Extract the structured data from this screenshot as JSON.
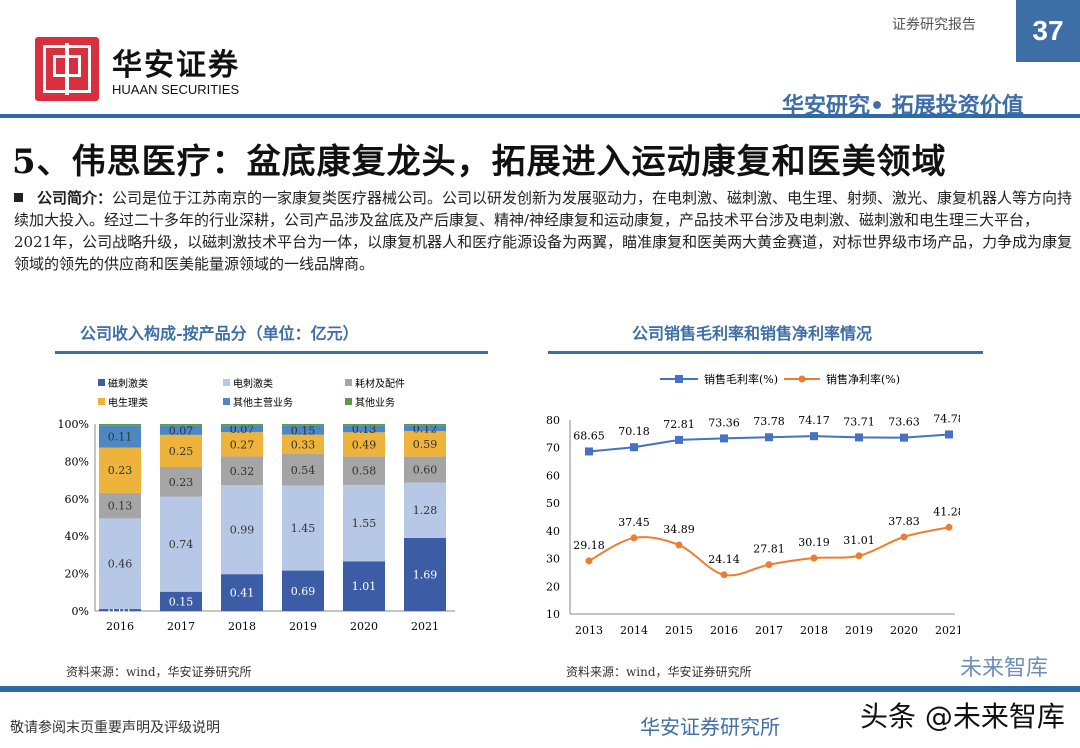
{
  "header": {
    "brand_cn": "华安证券",
    "brand_en": "HUAAN SECURITIES",
    "report_type": "证券研究报告",
    "page_number": "37",
    "slogan": "华安研究• 拓展投资价值"
  },
  "title": "5、伟思医疗：盆底康复龙头，拓展进入运动康复和医美领域",
  "intro": {
    "label": "公司简介：",
    "text": "公司是位于江苏南京的一家康复类医疗器械公司。公司以研发创新为发展驱动力，在电刺激、磁刺激、电生理、射频、激光、康复机器人等方向持续加大投入。经过二十多年的行业深耕，公司产品涉及盆底及产后康复、精神/神经康复和运动康复，产品技术平台涉及电刺激、磁刺激和电生理三大平台，2021年，公司战略升级，以磁刺激技术平台为一体，以康复机器人和医疗能源设备为两翼，瞄准康复和医美两大黄金赛道，对标世界级市场产品，力争成为康复领域的领先的供应商和医美能量源领域的一线品牌商。"
  },
  "chart_data": [
    {
      "type": "bar",
      "stacked": true,
      "normalized": true,
      "title": "公司收入构成-按产品分（单位：亿元）",
      "categories": [
        "2016",
        "2017",
        "2018",
        "2019",
        "2020",
        "2021"
      ],
      "yticks": [
        "0%",
        "20%",
        "40%",
        "60%",
        "80%",
        "100%"
      ],
      "legend_position": "top",
      "series": [
        {
          "name": "磁刺激类",
          "color": "#3c5da6",
          "values": [
            0.01,
            0.15,
            0.41,
            0.69,
            1.01,
            1.69
          ]
        },
        {
          "name": "电刺激类",
          "color": "#b7c8e6",
          "values": [
            0.46,
            0.74,
            0.99,
            1.45,
            1.55,
            1.28
          ]
        },
        {
          "name": "耗材及配件",
          "color": "#a5a5a5",
          "values": [
            0.13,
            0.23,
            0.32,
            0.54,
            0.58,
            0.6
          ]
        },
        {
          "name": "电生理类",
          "color": "#eeb33b",
          "values": [
            0.23,
            0.25,
            0.27,
            0.33,
            0.49,
            0.59
          ]
        },
        {
          "name": "其他主营业务",
          "color": "#4e88c3",
          "values": [
            0.11,
            0.07,
            0.07,
            0.15,
            0.13,
            0.12
          ]
        },
        {
          "name": "其他业务",
          "color": "#5a9a48",
          "values": [
            null,
            null,
            null,
            null,
            null,
            null
          ]
        }
      ],
      "labels": [
        [
          "0.01",
          "0.15",
          "0.41",
          "0.69",
          "1.01",
          "1.69"
        ],
        [
          "0.46",
          "0.74",
          "0.99",
          "1.45",
          "1.55",
          "1.28"
        ],
        [
          "0.13",
          "0.23",
          "0.32",
          "0.54",
          "0.58",
          "0.60"
        ],
        [
          "0.23",
          "0.25",
          "0.27",
          "0.33",
          "0.49",
          "0.59"
        ],
        [
          "0.11",
          "0.07",
          "0.07",
          "0.15",
          "0.13",
          "0.12"
        ]
      ],
      "source": "资料来源：wind，华安证券研究所"
    },
    {
      "type": "line",
      "title": "公司销售毛利率和销售净利率情况",
      "x": [
        "2013",
        "2014",
        "2015",
        "2016",
        "2017",
        "2018",
        "2019",
        "2020",
        "2021"
      ],
      "ylim": [
        10,
        80
      ],
      "yticks": [
        "10",
        "20",
        "30",
        "40",
        "50",
        "60",
        "70",
        "80"
      ],
      "legend_position": "top",
      "series": [
        {
          "name": "销售毛利率(%)",
          "color": "#4472c4",
          "marker": "square",
          "values": [
            68.65,
            70.18,
            72.81,
            73.36,
            73.78,
            74.17,
            73.71,
            73.63,
            74.78
          ],
          "labels": [
            "68.65",
            "70.18",
            "72.81",
            "73.36",
            "73.78",
            "74.17",
            "73.71",
            "73.63",
            "74.78"
          ]
        },
        {
          "name": "销售净利率(%)",
          "color": "#ed7d31",
          "marker": "circle",
          "smooth": true,
          "values": [
            29.18,
            37.45,
            34.89,
            24.14,
            27.81,
            30.19,
            31.01,
            37.83,
            41.28
          ],
          "labels": [
            "29.18",
            "37.45",
            "34.89",
            "24.14",
            "27.81",
            "30.19",
            "31.01",
            "37.83",
            "41.28"
          ]
        }
      ],
      "source": "资料来源：wind，华安证券研究所"
    }
  ],
  "footer": {
    "disclaimer": "敬请参阅末页重要声明及评级说明",
    "watermark": "头条 @未来智库",
    "watermark2": "未来智库",
    "watermark3": "华安证券研究所"
  }
}
